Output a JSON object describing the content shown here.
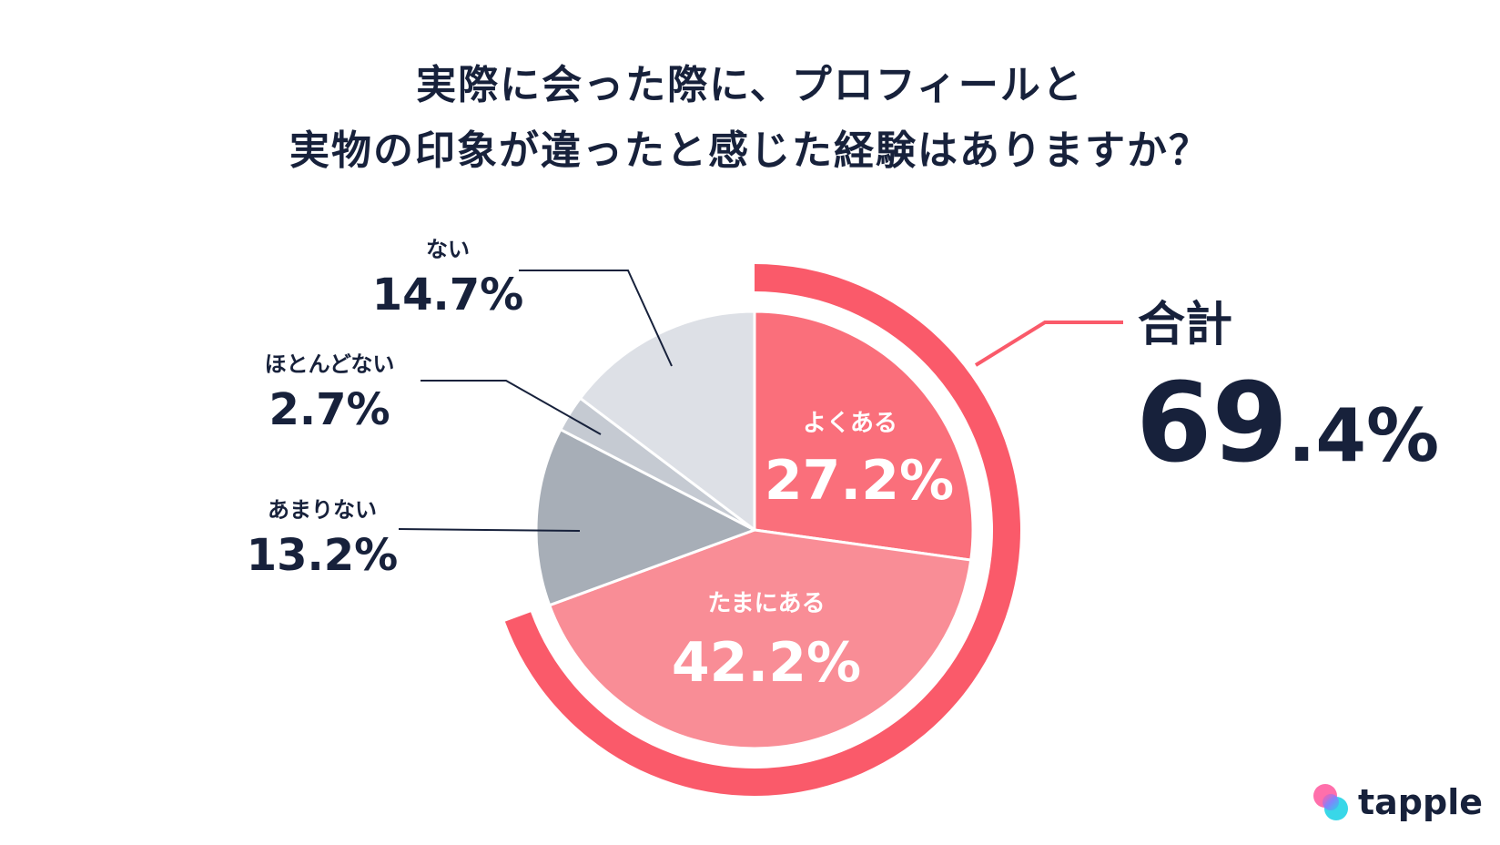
{
  "title": {
    "line1": "実際に会った際に、プロフィールと",
    "line2": "実物の印象が違ったと感じた経験はありますか？"
  },
  "chart_data": {
    "type": "pie",
    "title": "実際に会った際に、プロフィールと実物の印象が違ったと感じた経験はありますか？",
    "unit": "%",
    "slices": [
      {
        "label": "よくある",
        "value": 27.2,
        "display": "27.2%",
        "color": "#fa6f7b"
      },
      {
        "label": "たまにある",
        "value": 42.2,
        "display": "42.2%",
        "color": "#f98d96"
      },
      {
        "label": "あまりない",
        "value": 13.2,
        "display": "13.2%",
        "color": "#a7aeb7"
      },
      {
        "label": "ほとんどない",
        "value": 2.7,
        "display": "2.7%",
        "color": "#c5cad2"
      },
      {
        "label": "ない",
        "value": 14.7,
        "display": "14.7%",
        "color": "#dde0e6"
      }
    ],
    "highlight": {
      "label": "合計",
      "value": 69.4,
      "display_int": "69",
      "display_dec": ".4%",
      "includes": [
        "よくある",
        "たまにある"
      ],
      "color": "#fa5a6a"
    }
  },
  "colors": {
    "text": "#17213b",
    "leader": "#17213b",
    "highlight_arc": "#fa5a6a"
  },
  "brand": {
    "name": "tapple",
    "icon": "tapple-logo-icon"
  }
}
